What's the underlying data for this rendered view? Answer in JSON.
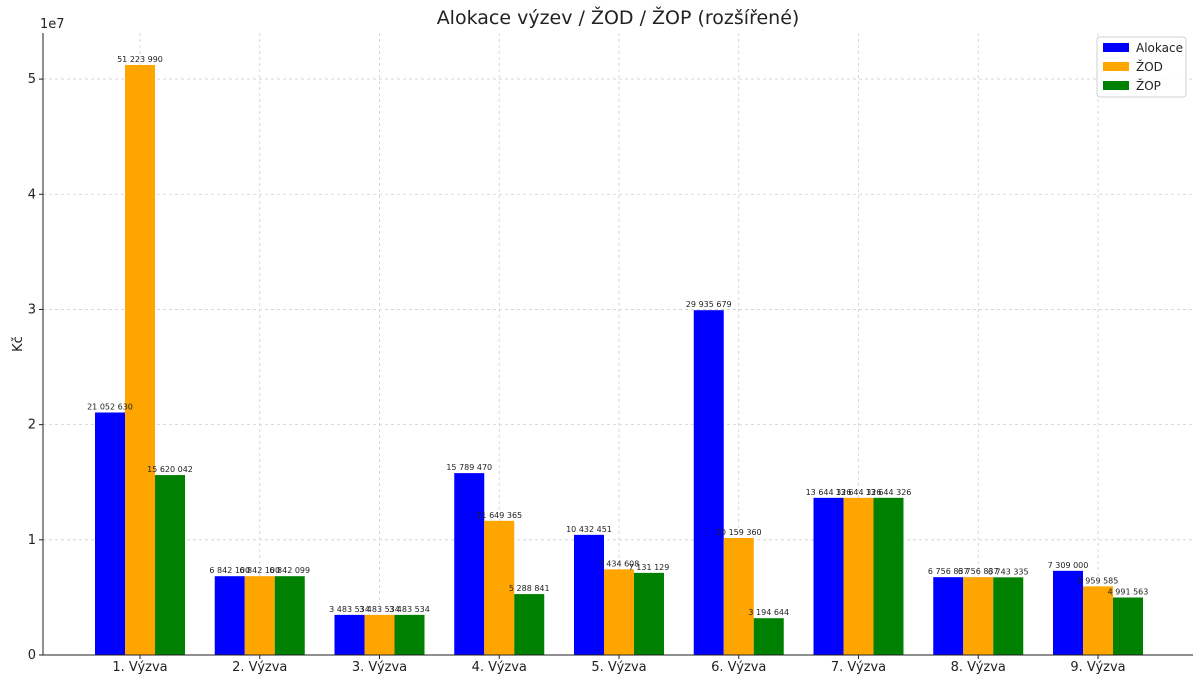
{
  "chart_data": {
    "type": "bar",
    "title": "Alokace výzev / ŽOD / ŽOP (rozšířené)",
    "xlabel": "",
    "ylabel": "Kč",
    "y_scale_label": "1e7",
    "ylim": [
      0,
      54000000
    ],
    "yticks": [
      0,
      10000000,
      20000000,
      30000000,
      40000000,
      50000000
    ],
    "ytick_labels": [
      "0",
      "1",
      "2",
      "3",
      "4",
      "5"
    ],
    "grid": true,
    "legend_position": "top-right",
    "categories": [
      "1. Výzva",
      "2. Výzva",
      "3. Výzva",
      "4. Výzva",
      "5. Výzva",
      "6. Výzva",
      "7. Výzva",
      "8. Výzva",
      "9. Výzva"
    ],
    "series": [
      {
        "name": "Alokace",
        "color": "#0000ff",
        "values": [
          21052630,
          6842100,
          3483534,
          15789470,
          10432451,
          29935679,
          13644326,
          6756837,
          7309000
        ],
        "labels": [
          "21 052 630",
          "6 842 100",
          "3 483 534",
          "15 789 470",
          "10 432 451",
          "29 935 679",
          "13 644 326",
          "6 756 837",
          "7 309 000"
        ]
      },
      {
        "name": "ŽOD",
        "color": "#ffa500",
        "values": [
          51223990,
          6842100,
          3483534,
          11649365,
          7434608,
          10159360,
          13644326,
          6756837,
          5959585
        ],
        "labels": [
          "51 223 990",
          "6 842 100",
          "3 483 534",
          "11 649 365",
          "7 434 608",
          "10 159 360",
          "13 644 326",
          "6 756 837",
          "5 959 585"
        ]
      },
      {
        "name": "ŽOP",
        "color": "#008000",
        "values": [
          15620042,
          6842099,
          3483534,
          5288841,
          7131129,
          3194644,
          13644326,
          6743335,
          4991563
        ],
        "labels": [
          "15 620 042",
          "6 842 099",
          "3 483 534",
          "5 288 841",
          "7 131 129",
          "3 194 644",
          "13 644 326",
          "6 743 335",
          "4 991 563"
        ]
      }
    ]
  }
}
